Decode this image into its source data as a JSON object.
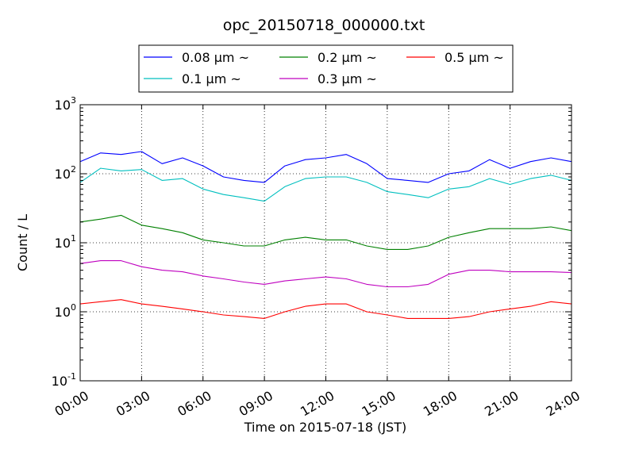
{
  "chart_data": {
    "type": "line",
    "title": "opc_20150718_000000.txt",
    "xlabel": "Time on 2015-07-18 (JST)",
    "ylabel": "Count / L",
    "yscale": "log",
    "ylim": [
      0.1,
      1000
    ],
    "xlim": [
      "2015-07-18 00:00",
      "2015-07-19 00:00"
    ],
    "grid": true,
    "legend_position": "top-center",
    "x_ticks": [
      "00:00",
      "03:00",
      "06:00",
      "09:00",
      "12:00",
      "15:00",
      "18:00",
      "21:00",
      "24:00"
    ],
    "y_ticks": [
      {
        "base": "10",
        "exp": "-1"
      },
      {
        "base": "10",
        "exp": "0"
      },
      {
        "base": "10",
        "exp": "1"
      },
      {
        "base": "10",
        "exp": "2"
      },
      {
        "base": "10",
        "exp": "3"
      }
    ],
    "x": [
      "00:00",
      "01:00",
      "02:00",
      "03:00",
      "04:00",
      "05:00",
      "06:00",
      "07:00",
      "08:00",
      "09:00",
      "10:00",
      "11:00",
      "12:00",
      "13:00",
      "14:00",
      "15:00",
      "16:00",
      "17:00",
      "18:00",
      "19:00",
      "20:00",
      "21:00",
      "22:00",
      "23:00",
      "24:00"
    ],
    "series": [
      {
        "name": "0.08 μm ~",
        "color": "#0000ff",
        "values": [
          150,
          200,
          190,
          210,
          140,
          170,
          130,
          90,
          80,
          75,
          130,
          160,
          170,
          190,
          140,
          85,
          80,
          75,
          100,
          110,
          160,
          120,
          150,
          170,
          150
        ]
      },
      {
        "name": "0.1 μm ~",
        "color": "#00bfbf",
        "values": [
          75,
          120,
          110,
          115,
          80,
          85,
          60,
          50,
          45,
          40,
          65,
          85,
          90,
          90,
          75,
          55,
          50,
          45,
          60,
          65,
          85,
          70,
          85,
          95,
          80
        ]
      },
      {
        "name": "0.2 μm ~",
        "color": "#008000",
        "values": [
          20,
          22,
          25,
          18,
          16,
          14,
          11,
          10,
          9,
          9,
          11,
          12,
          11,
          11,
          9,
          8,
          8,
          9,
          12,
          14,
          16,
          16,
          16,
          17,
          15
        ]
      },
      {
        "name": "0.3 μm ~",
        "color": "#bf00bf",
        "values": [
          5,
          5.5,
          5.5,
          4.5,
          4,
          3.8,
          3.3,
          3,
          2.7,
          2.5,
          2.8,
          3,
          3.2,
          3,
          2.5,
          2.3,
          2.3,
          2.5,
          3.5,
          4,
          4,
          3.8,
          3.8,
          3.8,
          3.7
        ]
      },
      {
        "name": "0.5 μm ~",
        "color": "#ff0000",
        "values": [
          1.3,
          1.4,
          1.5,
          1.3,
          1.2,
          1.1,
          1,
          0.9,
          0.85,
          0.8,
          1,
          1.2,
          1.3,
          1.3,
          1,
          0.9,
          0.8,
          0.8,
          0.8,
          0.85,
          1,
          1.1,
          1.2,
          1.4,
          1.3
        ]
      }
    ]
  }
}
